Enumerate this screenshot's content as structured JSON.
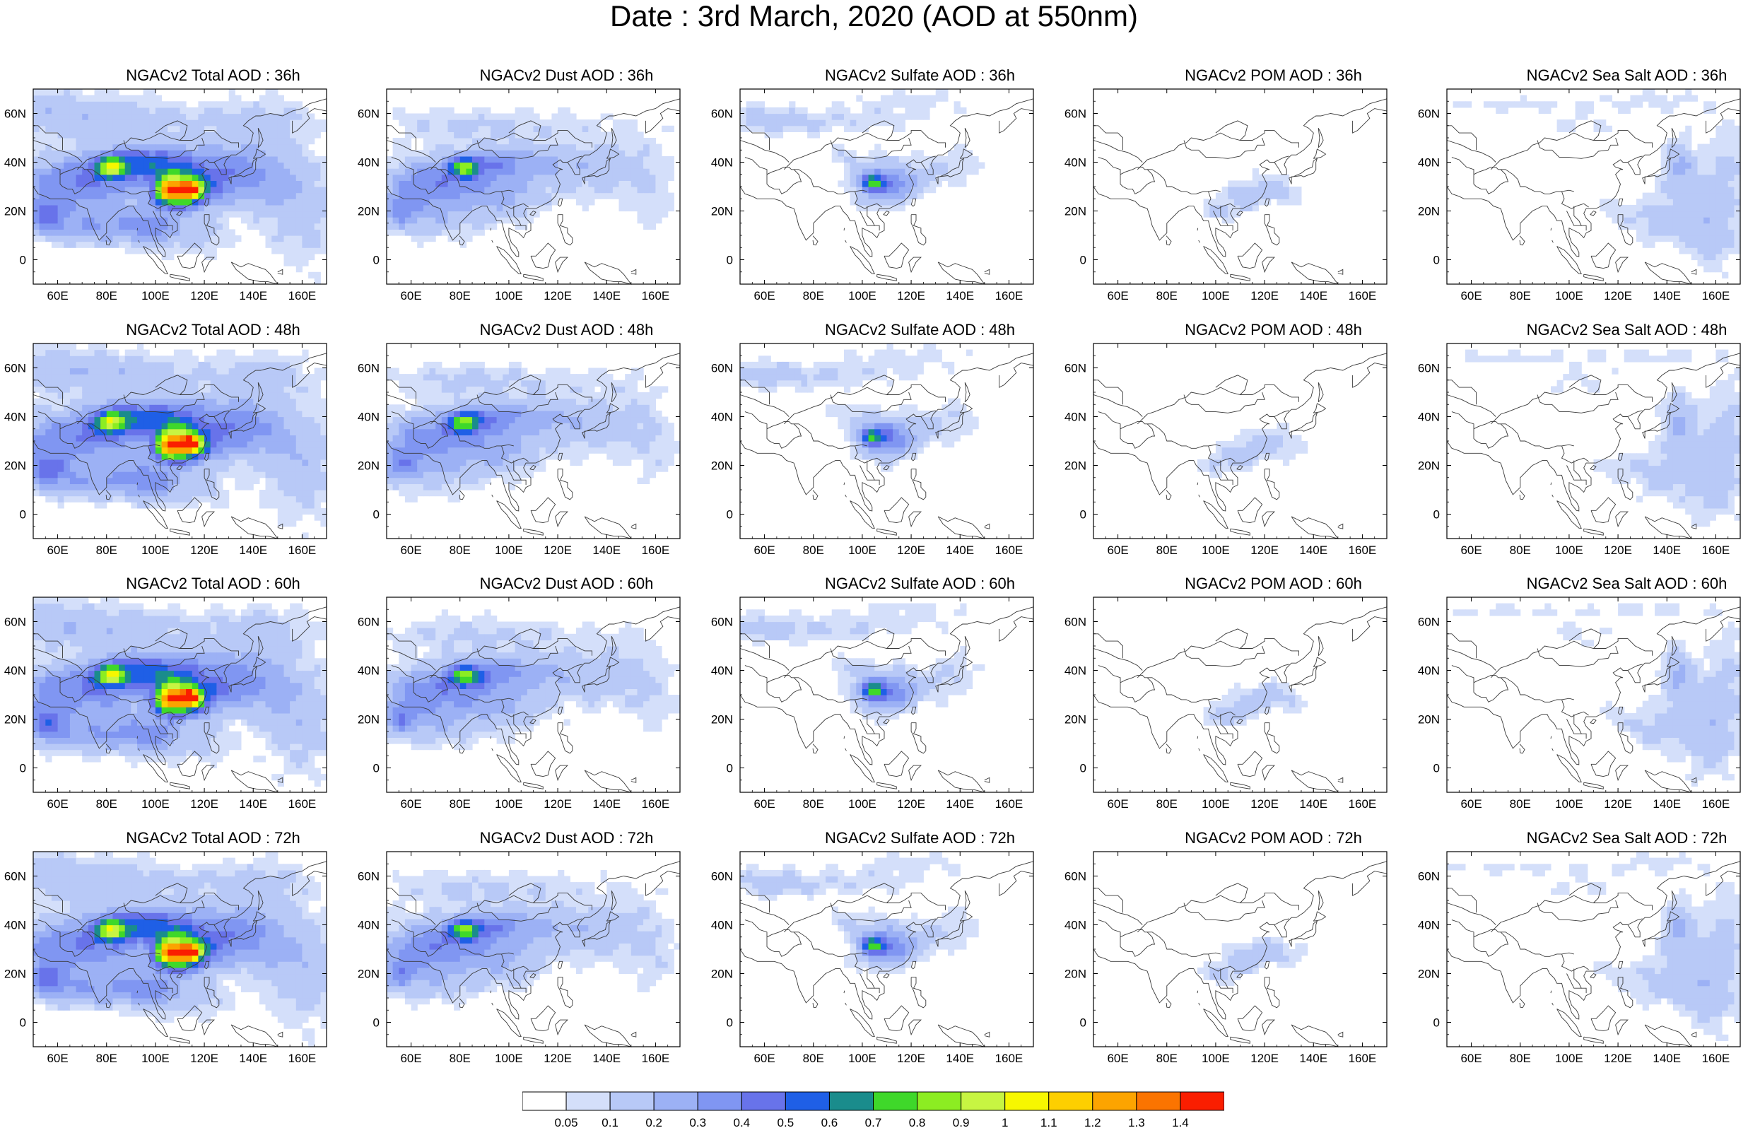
{
  "title": "Date : 3rd March, 2020 (AOD at 550nm)",
  "axes": {
    "lon_ticks": [
      "60E",
      "80E",
      "100E",
      "120E",
      "140E",
      "160E"
    ],
    "lat_ticks": [
      "60N",
      "40N",
      "20N",
      "0"
    ],
    "lon_values": [
      60,
      80,
      100,
      120,
      140,
      160
    ],
    "lat_values": [
      60,
      40,
      20,
      0
    ],
    "lon_range": [
      50,
      170
    ],
    "lat_range": [
      -10,
      70
    ]
  },
  "panels": [
    {
      "title": "NGACv2 Total AOD : 36h",
      "field": "total"
    },
    {
      "title": "NGACv2 Dust AOD : 36h",
      "field": "dust"
    },
    {
      "title": "NGACv2 Sulfate AOD : 36h",
      "field": "sulfate"
    },
    {
      "title": "NGACv2 POM AOD : 36h",
      "field": "pom"
    },
    {
      "title": "NGACv2 Sea Salt AOD : 36h",
      "field": "seasalt"
    },
    {
      "title": "NGACv2 Total AOD : 48h",
      "field": "total"
    },
    {
      "title": "NGACv2 Dust AOD : 48h",
      "field": "dust"
    },
    {
      "title": "NGACv2 Sulfate AOD : 48h",
      "field": "sulfate"
    },
    {
      "title": "NGACv2 POM AOD : 48h",
      "field": "pom"
    },
    {
      "title": "NGACv2 Sea Salt AOD : 48h",
      "field": "seasalt"
    },
    {
      "title": "NGACv2 Total AOD : 60h",
      "field": "total"
    },
    {
      "title": "NGACv2 Dust AOD : 60h",
      "field": "dust"
    },
    {
      "title": "NGACv2 Sulfate AOD : 60h",
      "field": "sulfate"
    },
    {
      "title": "NGACv2 POM AOD : 60h",
      "field": "pom"
    },
    {
      "title": "NGACv2 Sea Salt AOD : 60h",
      "field": "seasalt"
    },
    {
      "title": "NGACv2 Total AOD : 72h",
      "field": "total"
    },
    {
      "title": "NGACv2 Dust AOD : 72h",
      "field": "dust"
    },
    {
      "title": "NGACv2 Sulfate AOD : 72h",
      "field": "sulfate"
    },
    {
      "title": "NGACv2 POM AOD : 72h",
      "field": "pom"
    },
    {
      "title": "NGACv2 Sea Salt  AOD : 72h",
      "field": "seasalt"
    }
  ],
  "colorbar": {
    "labels": [
      "0.05",
      "0.1",
      "0.2",
      "0.3",
      "0.4",
      "0.5",
      "0.6",
      "0.7",
      "0.8",
      "0.9",
      "1",
      "1.1",
      "1.2",
      "1.3",
      "1.4"
    ],
    "colors": [
      "#ffffff",
      "#d4dffa",
      "#b8c9f7",
      "#9cb1f5",
      "#8096f2",
      "#6873ea",
      "#1f5fe6",
      "#1a8c8c",
      "#3fd82a",
      "#8ced22",
      "#c7f542",
      "#f7f700",
      "#fdcf00",
      "#fca400",
      "#fb7400",
      "#fa1e00"
    ]
  }
}
